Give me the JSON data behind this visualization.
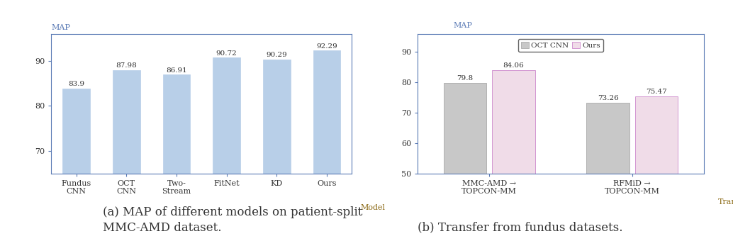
{
  "chart_a": {
    "categories": [
      "Fundus\nCNN",
      "OCT\nCNN",
      "Two-\nStream",
      "FitNet",
      "KD",
      "Ours"
    ],
    "values": [
      83.9,
      87.98,
      86.91,
      90.72,
      90.29,
      92.29
    ],
    "bar_color": "#b8cfe8",
    "bar_edgecolor": "#b8cfe8",
    "ylim": [
      65,
      96
    ],
    "yticks": [
      70,
      80,
      90
    ],
    "ylabel": "MAP",
    "xlabel": "Model"
  },
  "chart_b": {
    "groups": [
      "MMC-AMD →\nTOPCON-MM",
      "RFMiD →\nTOPCON-MM"
    ],
    "oct_cnn_values": [
      79.8,
      73.26
    ],
    "ours_values": [
      84.06,
      75.47
    ],
    "oct_cnn_color": "#c8c8c8",
    "oct_cnn_edgecolor": "#aaaaaa",
    "ours_color": "#f0dce8",
    "ours_edgecolor": "#cc88cc",
    "ylim": [
      50,
      96
    ],
    "yticks": [
      50,
      60,
      70,
      80,
      90
    ],
    "ylabel": "MAP",
    "xlabel": "Transfer",
    "legend_labels": [
      "OCT CNN",
      "Ours"
    ]
  },
  "caption_a": "(a) MAP of different models on patient-split\nMMC-AMD dataset.",
  "caption_b": "(b) Transfer from fundus datasets.",
  "caption_fontsize": 12,
  "tick_fontsize": 8,
  "label_fontsize": 8,
  "annot_fontsize": 7.5,
  "legend_fontsize": 7.5,
  "axis_color": "#5a7ab5",
  "tick_color": "#333333",
  "ylabel_color": "#5a7ab5",
  "xlabel_color": "#8B6914",
  "bg_color": "#ffffff"
}
